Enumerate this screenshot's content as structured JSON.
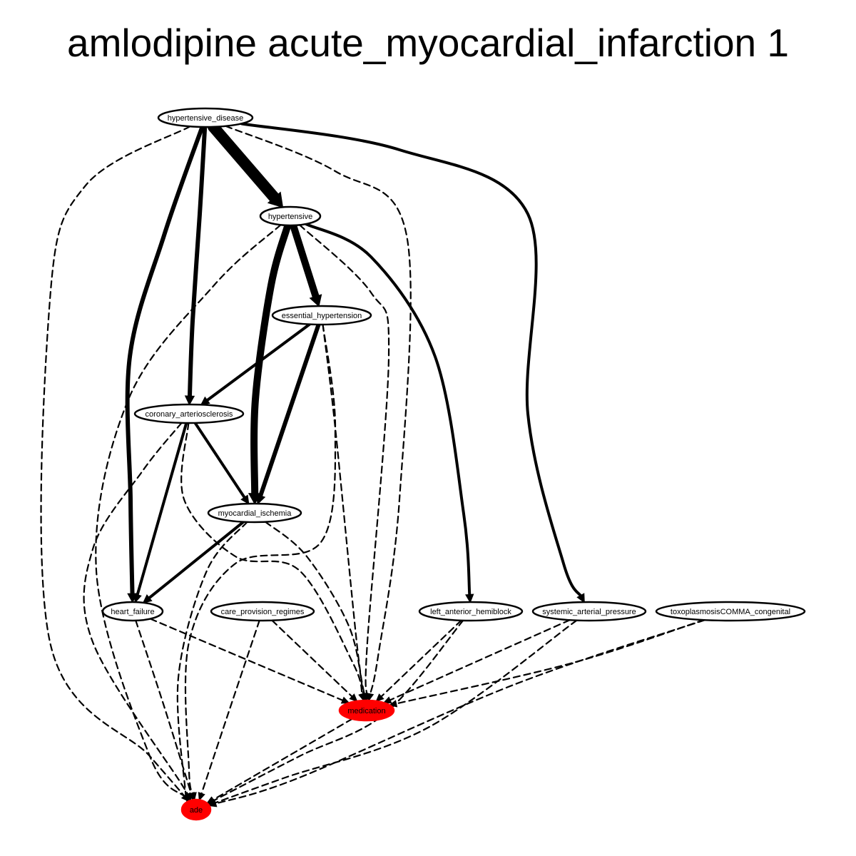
{
  "title": "amlodipine acute_myocardial_infarction 1",
  "colors": {
    "highlight": "#ff0000",
    "stroke": "#000000",
    "background": "#ffffff"
  },
  "nodes": {
    "hypertensive_disease": {
      "label": "hypertensive_disease",
      "highlight": false
    },
    "hypertensive": {
      "label": "hypertensive",
      "highlight": false
    },
    "essential_hypertension": {
      "label": "essential_hypertension",
      "highlight": false
    },
    "coronary_arteriosclerosis": {
      "label": "coronary_arteriosclerosis",
      "highlight": false
    },
    "myocardial_ischemia": {
      "label": "myocardial_ischemia",
      "highlight": false
    },
    "heart_failure": {
      "label": "heart_failure",
      "highlight": false
    },
    "care_provision_regimes": {
      "label": "care_provision_regimes",
      "highlight": false
    },
    "left_anterior_hemiblock": {
      "label": "left_anterior_hemiblock",
      "highlight": false
    },
    "systemic_arterial_pressure": {
      "label": "systemic_arterial_pressure",
      "highlight": false
    },
    "toxoplasmosis_congenital": {
      "label": "toxoplasmosisCOMMA_congenital",
      "highlight": false
    },
    "medication": {
      "label": "medication",
      "highlight": true
    },
    "ade": {
      "label": "ade",
      "highlight": true
    }
  },
  "edges": [
    {
      "from": "hypertensive_disease",
      "to": "hypertensive",
      "style": "solid",
      "weight": 5
    },
    {
      "from": "hypertensive_disease",
      "to": "coronary_arteriosclerosis",
      "style": "solid",
      "weight": 3
    },
    {
      "from": "hypertensive_disease",
      "to": "heart_failure",
      "style": "solid",
      "weight": 3
    },
    {
      "from": "hypertensive_disease",
      "to": "systemic_arterial_pressure",
      "style": "solid",
      "weight": 2
    },
    {
      "from": "hypertensive_disease",
      "to": "medication",
      "style": "dashed",
      "weight": 1
    },
    {
      "from": "hypertensive_disease",
      "to": "ade",
      "style": "dashed",
      "weight": 1
    },
    {
      "from": "hypertensive",
      "to": "essential_hypertension",
      "style": "solid",
      "weight": 4
    },
    {
      "from": "hypertensive",
      "to": "myocardial_ischemia",
      "style": "solid",
      "weight": 4
    },
    {
      "from": "hypertensive",
      "to": "left_anterior_hemiblock",
      "style": "solid",
      "weight": 2
    },
    {
      "from": "hypertensive",
      "to": "medication",
      "style": "dashed",
      "weight": 1
    },
    {
      "from": "hypertensive",
      "to": "ade",
      "style": "dashed",
      "weight": 1
    },
    {
      "from": "essential_hypertension",
      "to": "coronary_arteriosclerosis",
      "style": "solid",
      "weight": 2
    },
    {
      "from": "essential_hypertension",
      "to": "myocardial_ischemia",
      "style": "solid",
      "weight": 3
    },
    {
      "from": "essential_hypertension",
      "to": "medication",
      "style": "dashed",
      "weight": 1
    },
    {
      "from": "essential_hypertension",
      "to": "ade",
      "style": "dashed",
      "weight": 1
    },
    {
      "from": "coronary_arteriosclerosis",
      "to": "myocardial_ischemia",
      "style": "solid",
      "weight": 2
    },
    {
      "from": "coronary_arteriosclerosis",
      "to": "heart_failure",
      "style": "solid",
      "weight": 2
    },
    {
      "from": "coronary_arteriosclerosis",
      "to": "medication",
      "style": "dashed",
      "weight": 1
    },
    {
      "from": "coronary_arteriosclerosis",
      "to": "ade",
      "style": "dashed",
      "weight": 1
    },
    {
      "from": "myocardial_ischemia",
      "to": "heart_failure",
      "style": "solid",
      "weight": 2
    },
    {
      "from": "myocardial_ischemia",
      "to": "medication",
      "style": "dashed",
      "weight": 1
    },
    {
      "from": "myocardial_ischemia",
      "to": "ade",
      "style": "dashed",
      "weight": 1
    },
    {
      "from": "heart_failure",
      "to": "medication",
      "style": "dashed",
      "weight": 1
    },
    {
      "from": "heart_failure",
      "to": "ade",
      "style": "dashed",
      "weight": 1
    },
    {
      "from": "care_provision_regimes",
      "to": "medication",
      "style": "dashed",
      "weight": 1
    },
    {
      "from": "care_provision_regimes",
      "to": "ade",
      "style": "dashed",
      "weight": 1
    },
    {
      "from": "left_anterior_hemiblock",
      "to": "medication",
      "style": "dashed",
      "weight": 1
    },
    {
      "from": "left_anterior_hemiblock",
      "to": "ade",
      "style": "dashed",
      "weight": 1
    },
    {
      "from": "systemic_arterial_pressure",
      "to": "medication",
      "style": "dashed",
      "weight": 1
    },
    {
      "from": "systemic_arterial_pressure",
      "to": "ade",
      "style": "dashed",
      "weight": 1
    },
    {
      "from": "toxoplasmosis_congenital",
      "to": "medication",
      "style": "dashed",
      "weight": 1
    },
    {
      "from": "toxoplasmosis_congenital",
      "to": "ade",
      "style": "dashed",
      "weight": 1
    },
    {
      "from": "medication",
      "to": "ade",
      "style": "dashed",
      "weight": 1
    }
  ]
}
